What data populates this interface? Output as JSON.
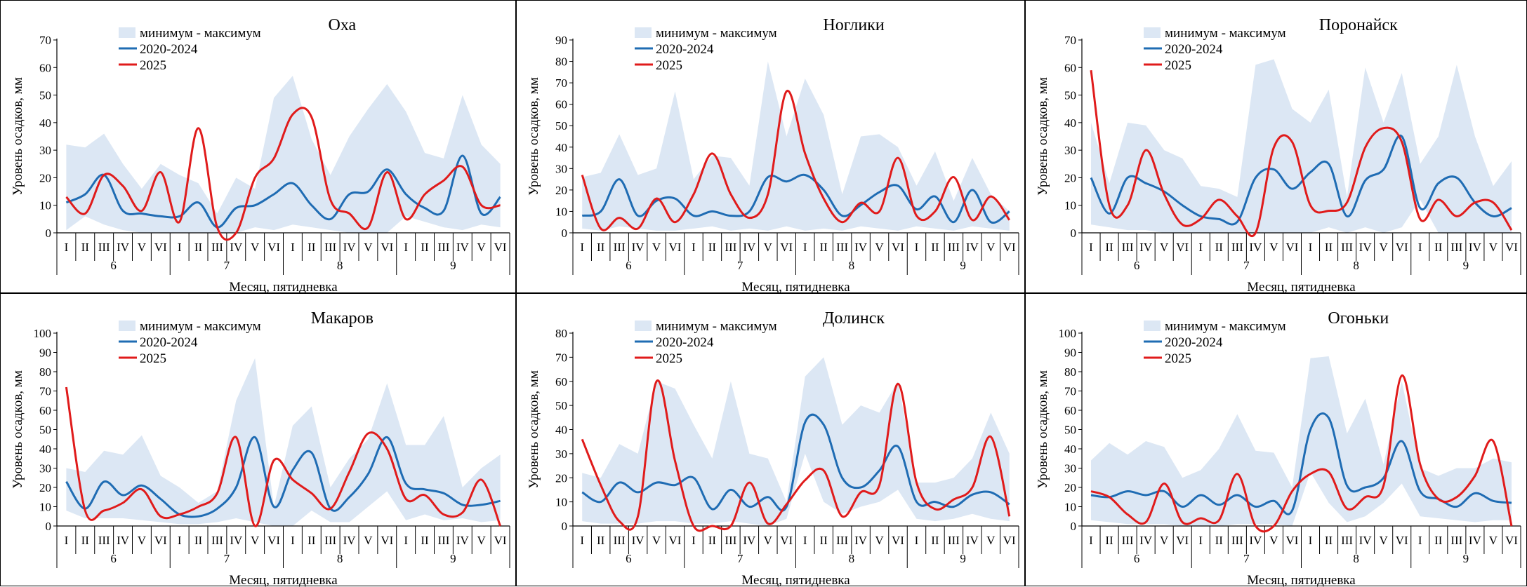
{
  "colors": {
    "range_fill": "#dce7f4",
    "hist_line": "#1f6cb3",
    "cur_line": "#e01b1b",
    "axis": "#000000"
  },
  "legend": {
    "range_label": "минимум - максимум",
    "hist_label": "2020-2024",
    "cur_label": "2025"
  },
  "x_axis": {
    "label": "Месяц, пятидневка",
    "pentads": [
      "I",
      "II",
      "III",
      "IV",
      "V",
      "VI"
    ],
    "months": [
      "6",
      "7",
      "8",
      "9"
    ]
  },
  "y_axis_label": "Уровень осадков, мм",
  "chart_data": [
    {
      "type": "line",
      "title": "Оха",
      "ylim": [
        0,
        70
      ],
      "ytick_step": 10,
      "series": [
        {
          "name": "минимум - максимум",
          "kind": "range",
          "min": [
            1,
            6,
            3,
            1,
            0,
            0,
            0,
            0,
            0,
            0,
            2,
            1,
            3,
            2,
            1,
            0,
            0,
            0,
            6,
            4,
            2,
            1,
            3,
            2
          ],
          "max": [
            32,
            31,
            36,
            25,
            16,
            25,
            21,
            18,
            7,
            20,
            16,
            49,
            57,
            34,
            21,
            35,
            45,
            54,
            44,
            29,
            27,
            50,
            32,
            25
          ]
        },
        {
          "name": "2020-2024",
          "kind": "line",
          "values": [
            11,
            14,
            21,
            8,
            7,
            6,
            6,
            11,
            2,
            9,
            10,
            14,
            18,
            10,
            5,
            14,
            15,
            23,
            14,
            9,
            8,
            28,
            7,
            13
          ]
        },
        {
          "name": "2025",
          "kind": "line",
          "values": [
            13,
            7,
            21,
            17,
            8,
            22,
            4,
            38,
            2,
            0,
            20,
            27,
            43,
            42,
            12,
            7,
            2,
            22,
            5,
            14,
            19,
            24,
            10,
            10
          ]
        }
      ]
    },
    {
      "type": "line",
      "title": "Ноглики",
      "ylim": [
        0,
        90
      ],
      "ytick_step": 10,
      "series": [
        {
          "name": "минимум - максимум",
          "kind": "range",
          "min": [
            2,
            1,
            3,
            2,
            1,
            1,
            2,
            3,
            1,
            2,
            1,
            3,
            1,
            2,
            1,
            3,
            2,
            1,
            3,
            2,
            1,
            3,
            2,
            1
          ],
          "max": [
            26,
            28,
            46,
            27,
            30,
            66,
            25,
            36,
            35,
            22,
            80,
            45,
            72,
            55,
            18,
            45,
            46,
            40,
            22,
            38,
            15,
            35,
            18,
            10
          ]
        },
        {
          "name": "2020-2024",
          "kind": "line",
          "values": [
            8,
            10,
            25,
            8,
            15,
            16,
            8,
            10,
            8,
            10,
            26,
            24,
            27,
            20,
            8,
            13,
            19,
            22,
            11,
            17,
            5,
            20,
            5,
            10
          ]
        },
        {
          "name": "2025",
          "kind": "line",
          "values": [
            27,
            2,
            7,
            2,
            16,
            5,
            18,
            37,
            18,
            7,
            18,
            66,
            37,
            16,
            5,
            14,
            10,
            35,
            8,
            10,
            26,
            6,
            17,
            6
          ]
        }
      ]
    },
    {
      "type": "line",
      "title": "Поронайск",
      "ylim": [
        0,
        70
      ],
      "ytick_step": 10,
      "series": [
        {
          "name": "минимум - максимум",
          "kind": "range",
          "min": [
            3,
            2,
            1,
            1,
            0,
            0,
            0,
            0,
            0,
            0,
            0,
            0,
            0,
            2,
            0,
            2,
            0,
            2,
            12,
            0,
            0,
            0,
            0,
            0
          ],
          "max": [
            40,
            18,
            40,
            39,
            30,
            27,
            17,
            16,
            13,
            61,
            63,
            45,
            40,
            52,
            13,
            60,
            40,
            58,
            25,
            35,
            61,
            35,
            17,
            26
          ]
        },
        {
          "name": "2020-2024",
          "kind": "line",
          "values": [
            20,
            7,
            20,
            18,
            15,
            10,
            6,
            5,
            4,
            20,
            23,
            16,
            22,
            25,
            6,
            19,
            23,
            35,
            9,
            18,
            20,
            11,
            6,
            9
          ]
        },
        {
          "name": "2025",
          "kind": "line",
          "values": [
            59,
            10,
            10,
            30,
            14,
            3,
            5,
            12,
            6,
            0,
            31,
            33,
            10,
            8,
            11,
            31,
            38,
            33,
            5,
            12,
            6,
            11,
            11,
            1
          ]
        }
      ]
    },
    {
      "type": "line",
      "title": "Макаров",
      "ylim": [
        0,
        100
      ],
      "ytick_step": 10,
      "series": [
        {
          "name": "минимум - максимум",
          "kind": "range",
          "min": [
            8,
            4,
            4,
            4,
            3,
            2,
            1,
            1,
            2,
            4,
            2,
            0,
            0,
            8,
            2,
            2,
            10,
            18,
            3,
            6,
            3,
            4,
            2,
            3
          ],
          "max": [
            30,
            28,
            39,
            37,
            47,
            26,
            20,
            12,
            18,
            65,
            87,
            10,
            52,
            62,
            20,
            35,
            45,
            74,
            42,
            42,
            57,
            20,
            30,
            37
          ]
        },
        {
          "name": "2020-2024",
          "kind": "line",
          "values": [
            23,
            9,
            23,
            16,
            21,
            14,
            6,
            5,
            9,
            20,
            46,
            10,
            29,
            38,
            9,
            15,
            27,
            46,
            22,
            19,
            17,
            11,
            11,
            13
          ]
        },
        {
          "name": "2025",
          "kind": "line",
          "values": [
            72,
            8,
            8,
            12,
            19,
            5,
            6,
            10,
            17,
            46,
            0,
            34,
            24,
            17,
            9,
            28,
            48,
            40,
            14,
            16,
            6,
            7,
            24,
            0
          ]
        }
      ]
    },
    {
      "type": "line",
      "title": "Долинск",
      "ylim": [
        0,
        80
      ],
      "ytick_step": 10,
      "series": [
        {
          "name": "минимум - максимум",
          "kind": "range",
          "min": [
            2,
            1,
            1,
            1,
            2,
            2,
            1,
            1,
            2,
            1,
            0,
            3,
            30,
            10,
            5,
            8,
            10,
            15,
            3,
            2,
            3,
            5,
            3,
            2
          ],
          "max": [
            22,
            20,
            34,
            30,
            60,
            57,
            42,
            28,
            60,
            30,
            28,
            10,
            62,
            70,
            42,
            50,
            47,
            60,
            18,
            18,
            20,
            28,
            47,
            30
          ]
        },
        {
          "name": "2020-2024",
          "kind": "line",
          "values": [
            14,
            10,
            18,
            14,
            18,
            17,
            20,
            7,
            15,
            8,
            12,
            8,
            43,
            42,
            20,
            16,
            23,
            33,
            10,
            10,
            8,
            13,
            14,
            9
          ]
        },
        {
          "name": "2025",
          "kind": "line",
          "values": [
            36,
            17,
            2,
            4,
            60,
            27,
            0,
            0,
            0,
            18,
            1,
            9,
            19,
            23,
            4,
            14,
            17,
            59,
            18,
            7,
            11,
            16,
            37,
            4
          ]
        }
      ]
    },
    {
      "type": "line",
      "title": "Огоньки",
      "ylim": [
        0,
        100
      ],
      "ytick_step": 10,
      "series": [
        {
          "name": "минимум - максимум",
          "kind": "range",
          "min": [
            3,
            2,
            1,
            1,
            1,
            0,
            0,
            0,
            1,
            1,
            1,
            0,
            28,
            12,
            2,
            5,
            12,
            22,
            5,
            4,
            3,
            2,
            3,
            3
          ],
          "max": [
            34,
            43,
            37,
            44,
            41,
            25,
            29,
            40,
            58,
            39,
            38,
            20,
            87,
            88,
            48,
            66,
            32,
            75,
            30,
            26,
            30,
            30,
            35,
            33
          ]
        },
        {
          "name": "2020-2024",
          "kind": "line",
          "values": [
            16,
            15,
            18,
            16,
            18,
            10,
            16,
            11,
            16,
            10,
            13,
            8,
            50,
            56,
            21,
            20,
            25,
            44,
            18,
            14,
            10,
            17,
            13,
            12
          ]
        },
        {
          "name": "2025",
          "kind": "line",
          "values": [
            18,
            15,
            6,
            2,
            22,
            2,
            4,
            3,
            27,
            0,
            0,
            18,
            27,
            28,
            9,
            15,
            21,
            78,
            32,
            14,
            15,
            26,
            44,
            0
          ]
        }
      ]
    }
  ]
}
